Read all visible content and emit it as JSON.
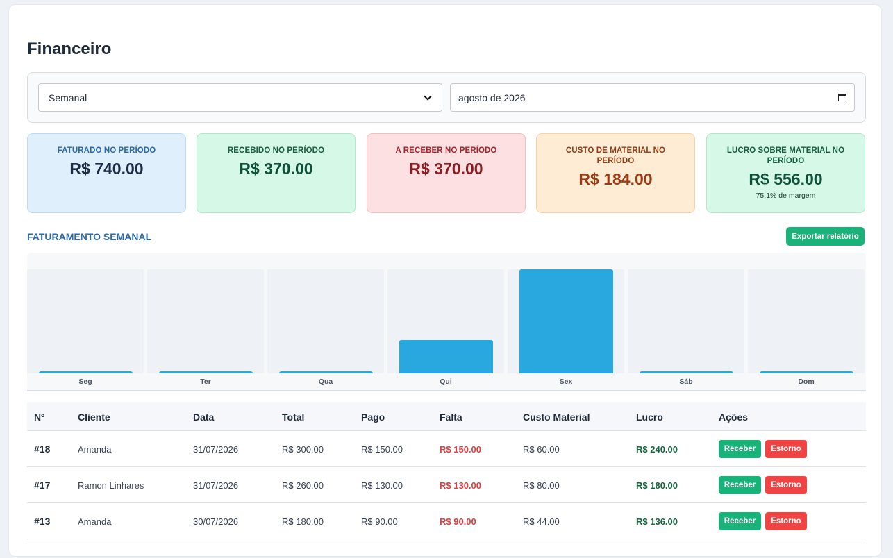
{
  "page": {
    "title": "Financeiro"
  },
  "filters": {
    "period_select": "Semanal",
    "month_input": "agosto de 2026"
  },
  "stats": [
    {
      "label": "FATURADO NO PERÍODO",
      "value": "R$ 740.00"
    },
    {
      "label": "RECEBIDO NO PERÍODO",
      "value": "R$ 370.00"
    },
    {
      "label": "A RECEBER NO PERÍODO",
      "value": "R$ 370.00"
    },
    {
      "label": "CUSTO DE MATERIAL NO PERÍODO",
      "value": "R$ 184.00"
    },
    {
      "label": "LUCRO SOBRE MATERIAL NO PERÍODO",
      "value": "R$ 556.00",
      "sub": "75.1% de margem"
    }
  ],
  "chart_section": {
    "title": "FATURAMENTO SEMANAL",
    "export_label": "Exportar relatório"
  },
  "chart_data": {
    "type": "bar",
    "title": "FATURAMENTO SEMANAL",
    "categories": [
      "Seg",
      "Ter",
      "Qua",
      "Qui",
      "Sex",
      "Sáb",
      "Dom"
    ],
    "values": [
      0,
      0,
      0,
      180,
      560,
      0,
      0
    ],
    "ylim": [
      0,
      560
    ],
    "grid": false,
    "colors": {
      "bar": "#29a8e0"
    }
  },
  "table": {
    "headers": [
      "Nº",
      "Cliente",
      "Data",
      "Total",
      "Pago",
      "Falta",
      "Custo Material",
      "Lucro",
      "Ações"
    ],
    "rows": [
      {
        "num": "#18",
        "cliente": "Amanda",
        "data": "31/07/2026",
        "total": "R$ 300.00",
        "pago": "R$ 150.00",
        "falta": "R$ 150.00",
        "custo": "R$ 60.00",
        "lucro": "R$ 240.00",
        "receber": "Receber",
        "estorno": "Estorno"
      },
      {
        "num": "#17",
        "cliente": "Ramon Linhares",
        "data": "31/07/2026",
        "total": "R$ 260.00",
        "pago": "R$ 130.00",
        "falta": "R$ 130.00",
        "custo": "R$ 80.00",
        "lucro": "R$ 180.00",
        "receber": "Receber",
        "estorno": "Estorno"
      },
      {
        "num": "#13",
        "cliente": "Amanda",
        "data": "30/07/2026",
        "total": "R$ 180.00",
        "pago": "R$ 90.00",
        "falta": "R$ 90.00",
        "custo": "R$ 44.00",
        "lucro": "R$ 136.00",
        "receber": "Receber",
        "estorno": "Estorno"
      }
    ]
  },
  "colors": {
    "accent_blue": "#2b6aa6",
    "success": "#19b37a",
    "danger": "#ef4444",
    "profit": "#16653f"
  }
}
